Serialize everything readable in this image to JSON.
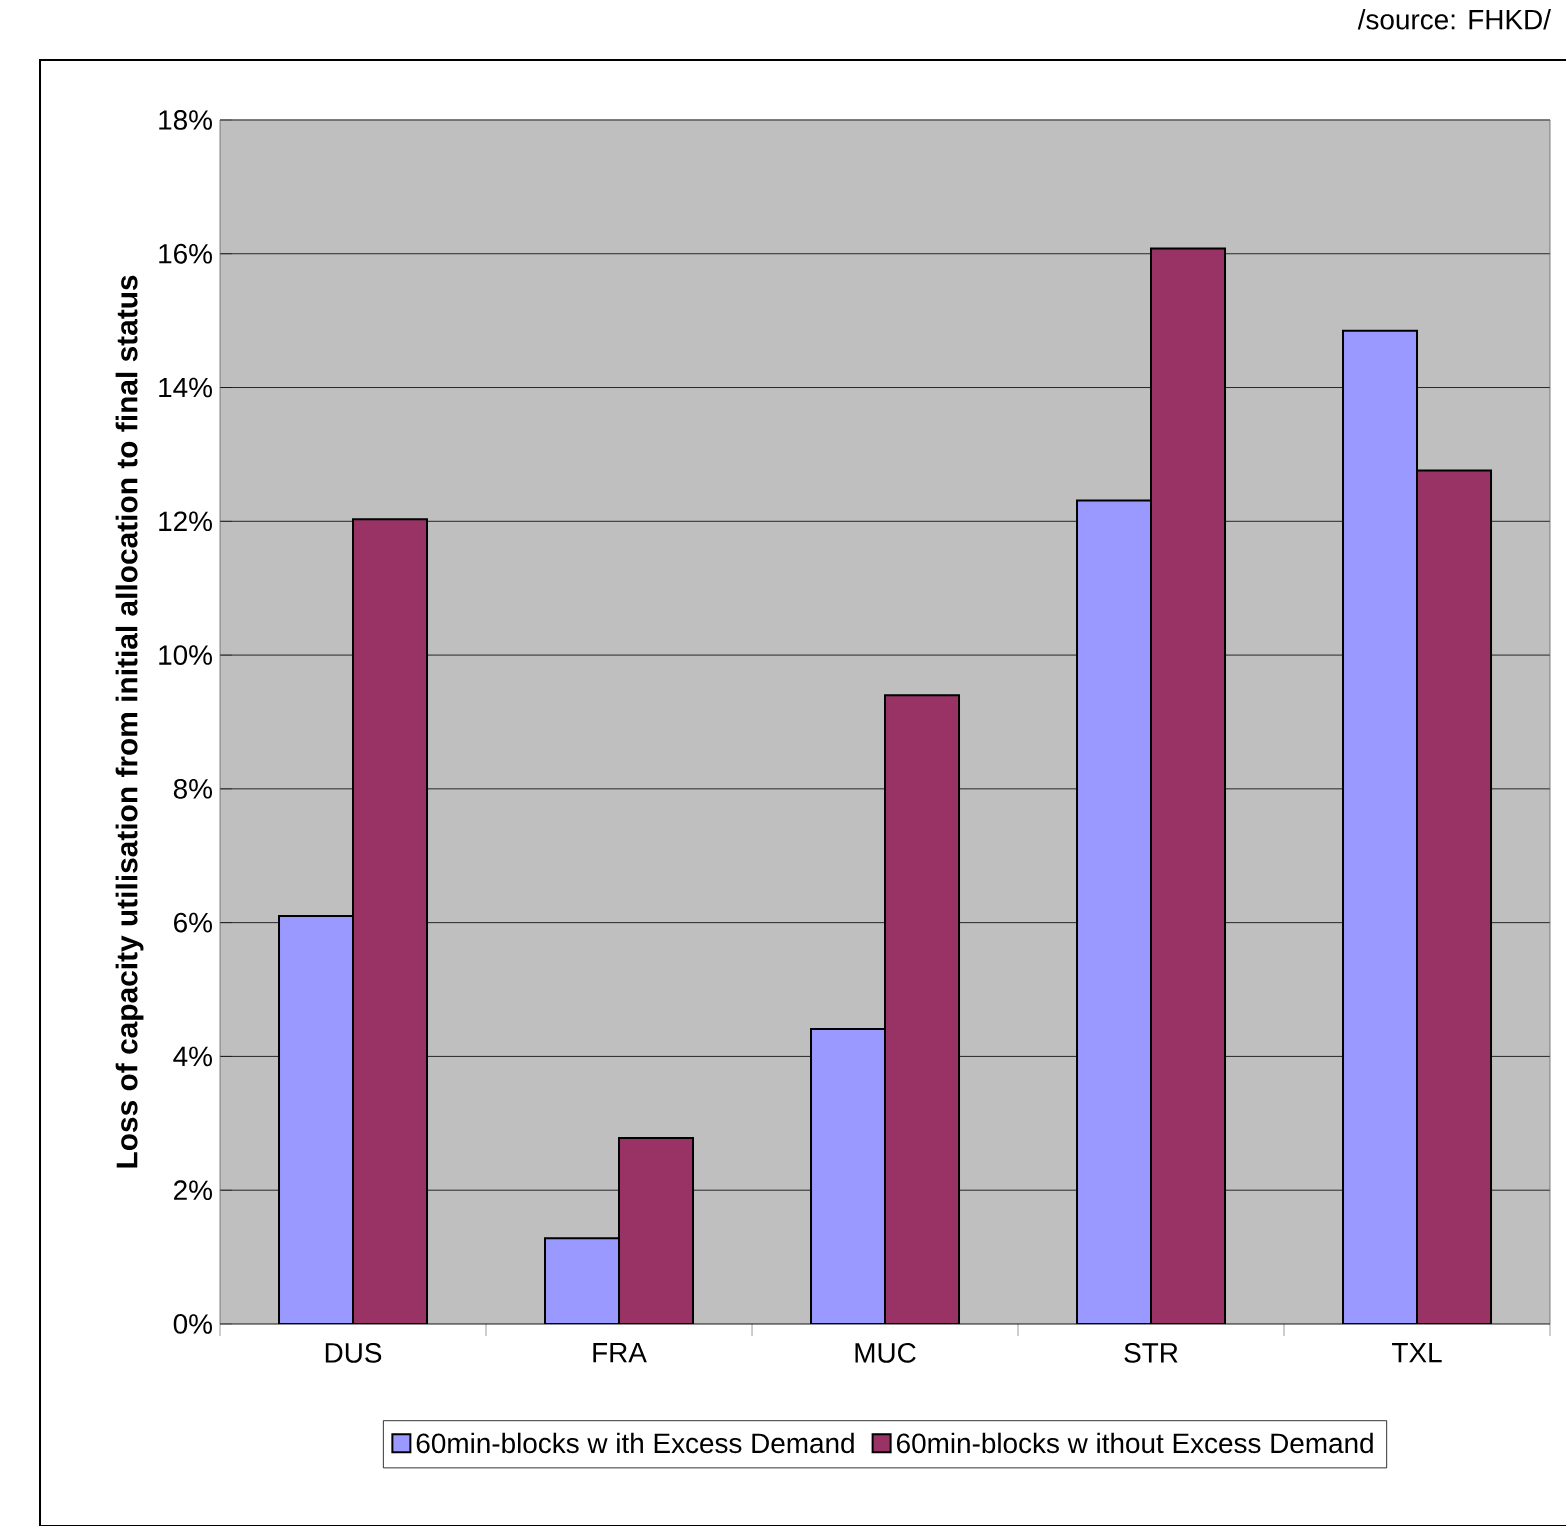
{
  "chart_data": {
    "type": "bar",
    "ylabel": "Loss of capacity utilisation from initial allocation to final status",
    "categories": [
      "DUS",
      "FRA",
      "MUC",
      "STR",
      "TXL"
    ],
    "series": [
      {
        "name": "60min-blocks w ith Excess Demand",
        "color": "#9999ff",
        "values": [
          6.1,
          1.28,
          4.41,
          12.31,
          14.85
        ]
      },
      {
        "name": "60min-blocks w ithout Excess Demand",
        "color": "#993366",
        "values": [
          12.03,
          2.78,
          9.4,
          16.08,
          12.76
        ]
      }
    ],
    "ylim": [
      0,
      18
    ],
    "yticks": [
      {
        "value": 0,
        "label": "0%"
      },
      {
        "value": 2,
        "label": "2%"
      },
      {
        "value": 4,
        "label": "4%"
      },
      {
        "value": 6,
        "label": "6%"
      },
      {
        "value": 8,
        "label": "8%"
      },
      {
        "value": 10,
        "label": "10%"
      },
      {
        "value": 12,
        "label": "12%"
      },
      {
        "value": 14,
        "label": "14%"
      },
      {
        "value": 16,
        "label": "16%"
      },
      {
        "value": 18,
        "label": "18%"
      }
    ],
    "grid": "y",
    "legend": "bottom",
    "annotations": [
      "/source: FHKD/"
    ]
  }
}
